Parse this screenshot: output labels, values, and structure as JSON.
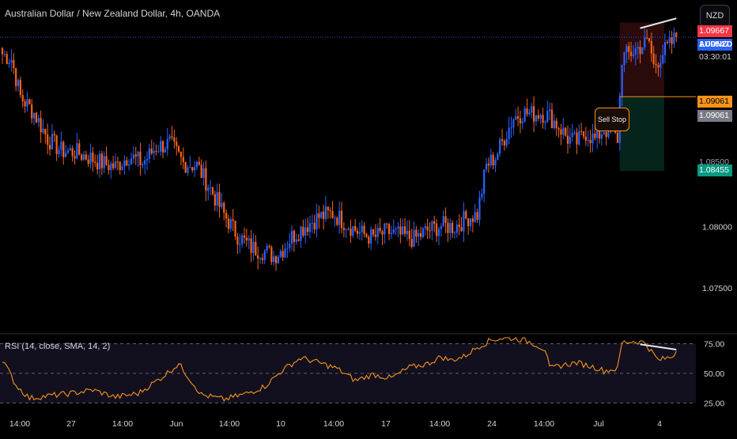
{
  "header": {
    "title": "Australian Dollar / New Zealand Dollar, 4h, OANDA",
    "currency_button": "NZD"
  },
  "price_tags": {
    "stop_loss": "1.09667",
    "symbol": "AUDNZD",
    "last_price": "1.09547",
    "countdown": "03:30:01",
    "entry_orange": "1.09061",
    "entry_gray": "1.09061",
    "target_partial": "1.08500",
    "target": "1.08455"
  },
  "order_label": "Sell Stop",
  "rsi": {
    "title": "RSI (14, close, SMA, 14, 2)"
  },
  "colors": {
    "up": "#2962ff",
    "down": "#f7631a",
    "rsi_line": "#f7931a",
    "stop_zone": "#2a0b0c",
    "target_zone": "#05241c",
    "entry_line": "#f7931a",
    "symbol_tag": "#2962ff",
    "stop_tag": "#f23645",
    "target_tag": "#089981",
    "divergence_line": "#e6e6e6"
  },
  "chart_data": {
    "type": "candlestick",
    "series_name": "AUDNZD",
    "yaxis": {
      "ticks": [
        1.085,
        1.08,
        1.075
      ],
      "tick_labels": [
        "1.08500",
        "1.08000",
        "1.07500"
      ],
      "ylim": [
        1.0714,
        1.0985
      ]
    },
    "xaxis": {
      "tick_labels": [
        "14:00",
        "27",
        "14:00",
        "Jun",
        "14:00",
        "10",
        "14:00",
        "17",
        "14:00",
        "24",
        "14:00",
        "Jul",
        "4"
      ]
    },
    "close_path": [
      [
        0,
        1.0941
      ],
      [
        4,
        1.0937
      ],
      [
        8,
        1.0906
      ],
      [
        14,
        1.0893
      ],
      [
        20,
        1.0872
      ],
      [
        26,
        1.0862
      ],
      [
        32,
        1.0861
      ],
      [
        38,
        1.0857
      ],
      [
        44,
        1.0852
      ],
      [
        50,
        1.0849
      ],
      [
        56,
        1.0858
      ],
      [
        62,
        1.0852
      ],
      [
        68,
        1.0865
      ],
      [
        74,
        1.0868
      ],
      [
        80,
        1.0852
      ],
      [
        86,
        1.085
      ],
      [
        92,
        1.0831
      ],
      [
        98,
        1.081
      ],
      [
        104,
        1.0793
      ],
      [
        110,
        1.0783
      ],
      [
        116,
        1.078
      ],
      [
        120,
        1.0776
      ],
      [
        124,
        1.0782
      ],
      [
        128,
        1.0792
      ],
      [
        134,
        1.0801
      ],
      [
        140,
        1.0808
      ],
      [
        146,
        1.0811
      ],
      [
        152,
        1.0803
      ],
      [
        158,
        1.0795
      ],
      [
        164,
        1.0791
      ],
      [
        170,
        1.0796
      ],
      [
        176,
        1.0793
      ],
      [
        182,
        1.079
      ],
      [
        188,
        1.0797
      ],
      [
        194,
        1.0801
      ],
      [
        200,
        1.08
      ],
      [
        206,
        1.0808
      ],
      [
        210,
        1.081
      ],
      [
        214,
        1.085
      ],
      [
        218,
        1.0857
      ],
      [
        222,
        1.0873
      ],
      [
        226,
        1.0889
      ],
      [
        230,
        1.0893
      ],
      [
        234,
        1.0892
      ],
      [
        238,
        1.0893
      ],
      [
        242,
        1.089
      ],
      [
        246,
        1.0882
      ],
      [
        250,
        1.0872
      ],
      [
        254,
        1.0869
      ],
      [
        258,
        1.0877
      ],
      [
        262,
        1.0871
      ],
      [
        266,
        1.088
      ],
      [
        270,
        1.0875
      ],
      [
        272,
        1.0872
      ],
      [
        274,
        1.0938
      ],
      [
        278,
        1.0942
      ],
      [
        282,
        1.0947
      ],
      [
        286,
        1.0951
      ],
      [
        288,
        1.0931
      ],
      [
        292,
        1.0942
      ],
      [
        296,
        1.095
      ],
      [
        298,
        1.0955
      ]
    ],
    "y_range": [
      1.0714,
      1.0985
    ],
    "annotations": {
      "sell_stop": {
        "entry": 1.09061,
        "stop_loss": 1.09667,
        "target": 1.08455,
        "label": "Sell Stop"
      },
      "last_price": 1.09547,
      "price_divergence": [
        [
          282,
          1.0962
        ],
        [
          298,
          1.097
        ]
      ],
      "rsi_divergence": [
        [
          282,
          74.5
        ],
        [
          298,
          70.0
        ]
      ]
    },
    "rsi": {
      "levels": [
        75,
        50,
        25
      ],
      "level_labels": [
        "75.00",
        "50.00",
        "25.00"
      ],
      "ylim": [
        18,
        82
      ],
      "path": [
        [
          0,
          62
        ],
        [
          6,
          40
        ],
        [
          12,
          29
        ],
        [
          20,
          31
        ],
        [
          30,
          33
        ],
        [
          40,
          36
        ],
        [
          50,
          30
        ],
        [
          60,
          33
        ],
        [
          70,
          46
        ],
        [
          78,
          58
        ],
        [
          88,
          32
        ],
        [
          98,
          28
        ],
        [
          108,
          33
        ],
        [
          116,
          39
        ],
        [
          124,
          53
        ],
        [
          132,
          63
        ],
        [
          140,
          59
        ],
        [
          148,
          54
        ],
        [
          156,
          44
        ],
        [
          164,
          49
        ],
        [
          172,
          46
        ],
        [
          180,
          55
        ],
        [
          188,
          58
        ],
        [
          194,
          64
        ],
        [
          198,
          61
        ],
        [
          204,
          64
        ],
        [
          210,
          72
        ],
        [
          216,
          78
        ],
        [
          222,
          80
        ],
        [
          228,
          79
        ],
        [
          234,
          76
        ],
        [
          240,
          70
        ],
        [
          242,
          54
        ],
        [
          248,
          57
        ],
        [
          254,
          59
        ],
        [
          260,
          56
        ],
        [
          264,
          54
        ],
        [
          266,
          52
        ],
        [
          272,
          54
        ],
        [
          274,
          76
        ],
        [
          280,
          77
        ],
        [
          284,
          76
        ],
        [
          290,
          61
        ],
        [
          296,
          64
        ],
        [
          298,
          69
        ]
      ]
    }
  }
}
